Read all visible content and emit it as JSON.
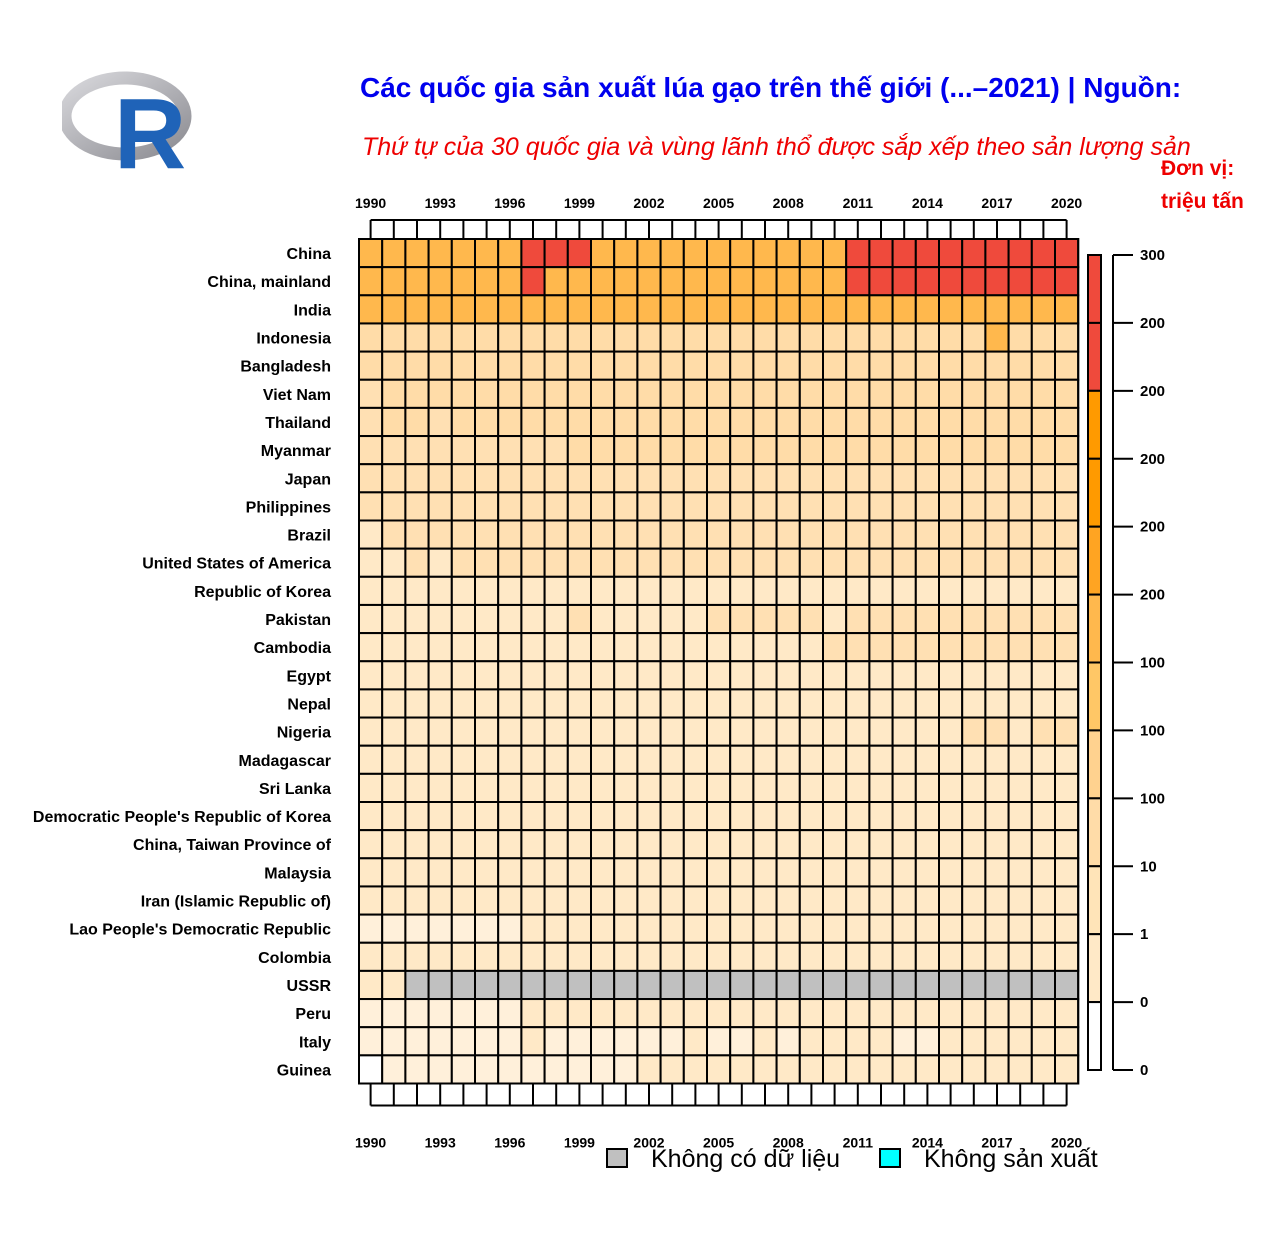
{
  "title": "Các quốc gia sản xuất lúa gạo trên thế giới (...–2021) | Nguồn:",
  "subtitle": "Thứ tự của 30 quốc gia và vùng lãnh thổ được sắp xếp theo sản lượng sản",
  "unit_line1": "Đơn vị:",
  "unit_line2": "triệu tấn",
  "logo_letter": "R",
  "colors": {
    "no_data": "#c0c0c0",
    "no_production": "#00ffff",
    "scale": [
      "#ffffff",
      "#ffe9c7",
      "#ffdca8",
      "#ffc766",
      "#ffb84d",
      "#ff9a00",
      "#ef4a3c"
    ]
  },
  "chart_data": {
    "type": "heatmap",
    "title": "Các quốc gia sản xuất lúa gạo trên thế giới (...–2021) | Nguồn:",
    "unit": "triệu tấn",
    "x_tick_labels": [
      "1990",
      "1993",
      "1996",
      "1999",
      "2002",
      "2005",
      "2008",
      "2011",
      "2014",
      "2017",
      "2020"
    ],
    "years": [
      1990,
      1991,
      1992,
      1993,
      1994,
      1995,
      1996,
      1997,
      1998,
      1999,
      2000,
      2001,
      2002,
      2003,
      2004,
      2005,
      2006,
      2007,
      2008,
      2009,
      2010,
      2011,
      2012,
      2013,
      2014,
      2015,
      2016,
      2017,
      2018,
      2019,
      2020
    ],
    "countries": [
      "China",
      "China, mainland",
      "India",
      "Indonesia",
      "Bangladesh",
      "Viet Nam",
      "Thailand",
      "Myanmar",
      "Japan",
      "Philippines",
      "Brazil",
      "United States of America",
      "Republic of Korea",
      "Pakistan",
      "Cambodia",
      "Egypt",
      "Nepal",
      "Nigeria",
      "Madagascar",
      "Sri Lanka",
      "Democratic People's Republic of Korea",
      "China, Taiwan Province of",
      "Malaysia",
      "Iran (Islamic Republic of)",
      "Lao People's Democratic Republic",
      "Colombia",
      "USSR",
      "Peru",
      "Italy",
      "Guinea"
    ],
    "values": [
      [
        190,
        190,
        185,
        180,
        180,
        185,
        195,
        200,
        200,
        200,
        190,
        180,
        175,
        160,
        180,
        180,
        182,
        186,
        191,
        196,
        195,
        200,
        204,
        203,
        206,
        212,
        211,
        213,
        212,
        209,
        211
      ],
      [
        189,
        183,
        186,
        178,
        176,
        185,
        195,
        201,
        199,
        199,
        188,
        178,
        175,
        161,
        180,
        181,
        182,
        186,
        193,
        196,
        196,
        201,
        205,
        204,
        207,
        212,
        211,
        213,
        212,
        209,
        212
      ],
      [
        112,
        111,
        109,
        115,
        122,
        116,
        122,
        124,
        129,
        134,
        128,
        139,
        107,
        132,
        124,
        137,
        139,
        145,
        148,
        133,
        143,
        158,
        157,
        159,
        157,
        156,
        163,
        169,
        172,
        178,
        186
      ],
      [
        45,
        44,
        48,
        48,
        46,
        50,
        51,
        49,
        49,
        50,
        52,
        50,
        51,
        52,
        54,
        54,
        54,
        57,
        60,
        64,
        66,
        66,
        69,
        71,
        71,
        75,
        79,
        81,
        59,
        55,
        55
      ],
      [
        27,
        28,
        28,
        27,
        27,
        27,
        28,
        28,
        29,
        35,
        38,
        36,
        38,
        39,
        36,
        40,
        44,
        43,
        47,
        48,
        50,
        51,
        51,
        52,
        52,
        52,
        53,
        54,
        56,
        55,
        55
      ],
      [
        19,
        20,
        22,
        22,
        24,
        25,
        26,
        27,
        29,
        31,
        33,
        32,
        34,
        35,
        36,
        36,
        36,
        36,
        39,
        39,
        40,
        42,
        43,
        44,
        45,
        45,
        43,
        43,
        44,
        43,
        43
      ],
      [
        17,
        20,
        20,
        19,
        21,
        22,
        22,
        23,
        23,
        24,
        26,
        28,
        28,
        30,
        28,
        30,
        30,
        32,
        32,
        32,
        36,
        38,
        38,
        36,
        32,
        28,
        31,
        33,
        32,
        29,
        30
      ],
      [
        14,
        13,
        14,
        17,
        19,
        18,
        18,
        17,
        17,
        20,
        21,
        22,
        22,
        22,
        24,
        27,
        31,
        31,
        30,
        32,
        33,
        29,
        26,
        26,
        26,
        26,
        26,
        27,
        29,
        26,
        25
      ],
      [
        13,
        12,
        13,
        10,
        15,
        13,
        13,
        12,
        11,
        11,
        12,
        11,
        11,
        10,
        11,
        11,
        11,
        11,
        11,
        11,
        11,
        11,
        11,
        11,
        11,
        11,
        11,
        10,
        10,
        10,
        10
      ],
      [
        10,
        10,
        10,
        10,
        11,
        11,
        12,
        11,
        9,
        12,
        13,
        13,
        13,
        14,
        15,
        15,
        15,
        16,
        17,
        16,
        16,
        17,
        18,
        19,
        19,
        18,
        18,
        19,
        19,
        19,
        19
      ],
      [
        7,
        9,
        10,
        10,
        11,
        11,
        9,
        9,
        8,
        12,
        11,
        10,
        11,
        10,
        13,
        13,
        11,
        11,
        12,
        13,
        11,
        13,
        12,
        12,
        12,
        12,
        11,
        12,
        12,
        10,
        11
      ],
      [
        7,
        7,
        8,
        7,
        9,
        8,
        8,
        8,
        8,
        9,
        9,
        10,
        10,
        9,
        11,
        10,
        9,
        9,
        9,
        10,
        11,
        8,
        9,
        9,
        10,
        9,
        10,
        8,
        10,
        8,
        10
      ],
      [
        7,
        7,
        7,
        7,
        7,
        7,
        7,
        7,
        7,
        7,
        7,
        7,
        7,
        6,
        7,
        6,
        6,
        6,
        6,
        7,
        6,
        6,
        6,
        6,
        6,
        6,
        6,
        5,
        5,
        5,
        5
      ],
      [
        5,
        5,
        5,
        6,
        5,
        6,
        6,
        6,
        7,
        8,
        7,
        6,
        7,
        7,
        7,
        8,
        8,
        8,
        10,
        10,
        7,
        9,
        9,
        9,
        10,
        10,
        10,
        11,
        11,
        11,
        12
      ],
      [
        3,
        3,
        3,
        2,
        2,
        3,
        3,
        3,
        3,
        4,
        4,
        4,
        4,
        5,
        4,
        6,
        6,
        6,
        7,
        7,
        8,
        9,
        9,
        9,
        9,
        9,
        10,
        10,
        11,
        11,
        11
      ],
      [
        3,
        3,
        4,
        4,
        4,
        4,
        5,
        5,
        5,
        6,
        6,
        5,
        6,
        6,
        6,
        6,
        7,
        7,
        7,
        6,
        4,
        6,
        6,
        6,
        6,
        5,
        5,
        6,
        5,
        6,
        6
      ],
      [
        3,
        3,
        3,
        3,
        3,
        3,
        3,
        3,
        4,
        4,
        4,
        4,
        4,
        4,
        4,
        4,
        4,
        4,
        4,
        5,
        4,
        5,
        5,
        5,
        5,
        4,
        5,
        5,
        6,
        5,
        6
      ],
      [
        3,
        3,
        3,
        3,
        3,
        3,
        3,
        3,
        3,
        3,
        3,
        3,
        3,
        3,
        3,
        4,
        4,
        3,
        4,
        4,
        5,
        5,
        5,
        5,
        6,
        6,
        8,
        9,
        7,
        8,
        8
      ],
      [
        2,
        2,
        2,
        3,
        3,
        3,
        3,
        3,
        3,
        3,
        3,
        3,
        3,
        3,
        3,
        3,
        3,
        3,
        4,
        5,
        5,
        4,
        4,
        4,
        4,
        4,
        4,
        4,
        4,
        4,
        4
      ],
      [
        2,
        2,
        2,
        3,
        3,
        3,
        2,
        2,
        3,
        3,
        3,
        3,
        3,
        3,
        3,
        3,
        3,
        3,
        4,
        4,
        4,
        4,
        4,
        5,
        4,
        4,
        4,
        4,
        5,
        4,
        5
      ],
      [
        3,
        3,
        3,
        3,
        3,
        3,
        3,
        3,
        3,
        3,
        3,
        3,
        3,
        3,
        3,
        3,
        3,
        3,
        3,
        3,
        3,
        3,
        3,
        3,
        3,
        3,
        3,
        3,
        3,
        3,
        3
      ],
      [
        2,
        2,
        2,
        2,
        2,
        2,
        2,
        2,
        2,
        2,
        2,
        2,
        2,
        2,
        2,
        2,
        2,
        2,
        2,
        2,
        2,
        2,
        2,
        2,
        2,
        2,
        2,
        2,
        2,
        2,
        2
      ],
      [
        2,
        2,
        2,
        2,
        2,
        2,
        2,
        2,
        2,
        2,
        2,
        2,
        2,
        2,
        2,
        2,
        2,
        2,
        2,
        2,
        2,
        3,
        3,
        3,
        3,
        3,
        3,
        3,
        3,
        3,
        3
      ],
      [
        2,
        2,
        2,
        2,
        2,
        2,
        2,
        2,
        3,
        2,
        2,
        2,
        2,
        3,
        3,
        3,
        3,
        3,
        2,
        2,
        2,
        2,
        2,
        2,
        2,
        2,
        2,
        2,
        2,
        2,
        2
      ],
      [
        1,
        1,
        1,
        1,
        1,
        1,
        1,
        2,
        2,
        2,
        2,
        2,
        2,
        2,
        3,
        3,
        3,
        3,
        3,
        3,
        3,
        3,
        4,
        4,
        4,
        4,
        4,
        4,
        4,
        4,
        4
      ],
      [
        2,
        2,
        2,
        2,
        2,
        2,
        2,
        2,
        2,
        2,
        2,
        2,
        2,
        2,
        2,
        2,
        2,
        2,
        2,
        3,
        2,
        2,
        2,
        2,
        2,
        2,
        2,
        2,
        2,
        2,
        2
      ],
      [
        2,
        2,
        null,
        null,
        null,
        null,
        null,
        null,
        null,
        null,
        null,
        null,
        null,
        null,
        null,
        null,
        null,
        null,
        null,
        null,
        null,
        null,
        null,
        null,
        null,
        null,
        null,
        null,
        null,
        null,
        null
      ],
      [
        1.0,
        0.8,
        0.8,
        1.0,
        1.4,
        1.1,
        1.2,
        1.5,
        1.9,
        2.0,
        1.9,
        2.0,
        2.1,
        2.1,
        1.8,
        2.5,
        2.4,
        2.4,
        2.8,
        2.9,
        2.8,
        2.6,
        3.0,
        3.0,
        2.9,
        3.2,
        3.2,
        3.0,
        3.6,
        3.2,
        3.4
      ],
      [
        1.3,
        1.2,
        1.3,
        1.4,
        1.3,
        1.3,
        1.4,
        1.5,
        1.4,
        1.4,
        1.2,
        1.3,
        1.4,
        1.4,
        1.5,
        1.4,
        1.4,
        1.5,
        1.4,
        1.5,
        1.6,
        1.5,
        1.6,
        1.3,
        1.4,
        1.5,
        1.6,
        1.5,
        1.5,
        1.5,
        1.5
      ],
      [
        0.5,
        0.6,
        0.6,
        0.7,
        0.7,
        0.7,
        0.8,
        1.1,
        1.1,
        1.2,
        1.2,
        1.3,
        1.6,
        1.5,
        1.6,
        1.5,
        1.5,
        1.5,
        1.5,
        1.5,
        1.6,
        1.8,
        1.9,
        2.0,
        2.0,
        2.0,
        2.1,
        2.3,
        2.4,
        2.5,
        2.5
      ]
    ],
    "legend": {
      "tick_labels": [
        "0",
        "0",
        "1",
        "10",
        "100",
        "100",
        "100",
        "200",
        "200",
        "200",
        "200",
        "200",
        "300"
      ],
      "colors": [
        "#00ffff",
        "#ffffff",
        "#ffe9c7",
        "#ffe4b8",
        "#ffdca8",
        "#ffd28f",
        "#ffc766",
        "#ffb84d",
        "#ffa422",
        "#ff9a00",
        "#ff9a00",
        "#ef4a3c",
        "#ef4a3c"
      ]
    },
    "special_legend": [
      {
        "label": "Không có dữ liệu",
        "color": "#c0c0c0"
      },
      {
        "label": "Không sản xuất",
        "color": "#00ffff"
      }
    ]
  }
}
